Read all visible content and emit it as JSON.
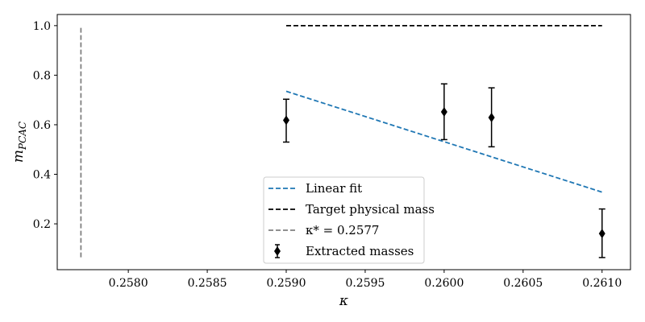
{
  "chart_data": {
    "type": "scatter",
    "xlabel": "κ",
    "ylabel": "m",
    "ylabel_sub": "PCAC",
    "xlim": [
      0.25755,
      0.26118
    ],
    "ylim": [
      0.015,
      1.045
    ],
    "grid": false,
    "legend_position": "lower-center",
    "x_ticks": [
      0.258,
      0.2585,
      0.259,
      0.2595,
      0.26,
      0.2605,
      0.261
    ],
    "x_tick_labels": [
      "0.2580",
      "0.2585",
      "0.2590",
      "0.2595",
      "0.2600",
      "0.2605",
      "0.2610"
    ],
    "y_ticks": [
      0.2,
      0.4,
      0.6,
      0.8,
      1.0
    ],
    "y_tick_labels": [
      "0.2",
      "0.4",
      "0.6",
      "0.8",
      "1.0"
    ],
    "series": [
      {
        "name": "Linear fit",
        "kind": "line",
        "style": "dashed",
        "color": "#1f77b4",
        "x": [
          0.259,
          0.261
        ],
        "y": [
          0.735,
          0.328
        ]
      },
      {
        "name": "Target physical mass",
        "kind": "line",
        "style": "dashed",
        "color": "#000000",
        "x": [
          0.259,
          0.261
        ],
        "y": [
          1.0,
          1.0
        ]
      },
      {
        "name": "κ* = 0.2577",
        "kind": "vline",
        "style": "dashed",
        "color": "#808080",
        "x": [
          0.2577,
          0.2577
        ],
        "y": [
          0.065,
          1.0
        ]
      },
      {
        "name": "Extracted masses",
        "kind": "errorbar",
        "marker": "diamond",
        "color": "#000000",
        "x": [
          0.259,
          0.26,
          0.2603,
          0.261
        ],
        "y": [
          0.618,
          0.652,
          0.629,
          0.161
        ],
        "yerr_low": [
          0.088,
          0.112,
          0.118,
          0.097
        ],
        "yerr_high": [
          0.085,
          0.113,
          0.12,
          0.099
        ]
      }
    ]
  }
}
